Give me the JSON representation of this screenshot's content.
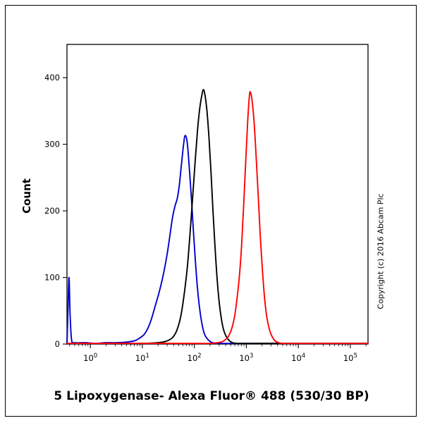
{
  "figure": {
    "caption": "5 Lipoxygenase- Alexa Fluor® 488 (530/30 BP)",
    "copyright": "Copyright (c) 2016 Abcam Plc"
  },
  "chart_data": {
    "type": "line",
    "subtype": "flow-cytometry-overlay-histogram",
    "title": "5 Lipoxygenase- Alexa Fluor® 488 (530/30 BP)",
    "xlabel": "",
    "ylabel": "Count",
    "x_scale": "log10",
    "x_tick_exponents": [
      0,
      1,
      2,
      3,
      4,
      5
    ],
    "x_range_log10": [
      -0.45,
      5.34
    ],
    "y_ticks": [
      0,
      100,
      200,
      300,
      400
    ],
    "y_range": [
      0,
      450
    ],
    "grid": false,
    "legend": "none",
    "series": [
      {
        "name": "blue-curve",
        "color": "#0000cc",
        "peak_x_log10": 1.82,
        "peak_y": 313,
        "points": [
          [
            -0.45,
            0
          ],
          [
            -0.43,
            55
          ],
          [
            -0.41,
            100
          ],
          [
            -0.39,
            45
          ],
          [
            -0.36,
            6
          ],
          [
            -0.3,
            2
          ],
          [
            -0.1,
            2
          ],
          [
            0.1,
            1
          ],
          [
            0.3,
            2
          ],
          [
            0.5,
            2
          ],
          [
            0.7,
            3
          ],
          [
            0.85,
            5
          ],
          [
            0.95,
            9
          ],
          [
            1.05,
            16
          ],
          [
            1.15,
            32
          ],
          [
            1.25,
            58
          ],
          [
            1.33,
            80
          ],
          [
            1.4,
            103
          ],
          [
            1.47,
            132
          ],
          [
            1.53,
            163
          ],
          [
            1.58,
            190
          ],
          [
            1.63,
            208
          ],
          [
            1.67,
            218
          ],
          [
            1.71,
            238
          ],
          [
            1.75,
            268
          ],
          [
            1.79,
            298
          ],
          [
            1.82,
            313
          ],
          [
            1.86,
            304
          ],
          [
            1.9,
            268
          ],
          [
            1.94,
            222
          ],
          [
            1.98,
            172
          ],
          [
            2.02,
            124
          ],
          [
            2.06,
            84
          ],
          [
            2.1,
            54
          ],
          [
            2.15,
            29
          ],
          [
            2.2,
            14
          ],
          [
            2.27,
            6
          ],
          [
            2.35,
            2
          ],
          [
            2.5,
            1
          ],
          [
            3.0,
            1
          ],
          [
            4.0,
            1
          ],
          [
            5.34,
            1
          ]
        ]
      },
      {
        "name": "black-curve",
        "color": "#000000",
        "peak_x_log10": 2.17,
        "peak_y": 382,
        "points": [
          [
            -0.45,
            1
          ],
          [
            0.5,
            1
          ],
          [
            1.0,
            1
          ],
          [
            1.3,
            2
          ],
          [
            1.45,
            4
          ],
          [
            1.57,
            9
          ],
          [
            1.66,
            20
          ],
          [
            1.74,
            42
          ],
          [
            1.8,
            72
          ],
          [
            1.86,
            112
          ],
          [
            1.91,
            158
          ],
          [
            1.96,
            212
          ],
          [
            2.01,
            268
          ],
          [
            2.06,
            320
          ],
          [
            2.1,
            352
          ],
          [
            2.14,
            372
          ],
          [
            2.17,
            382
          ],
          [
            2.2,
            376
          ],
          [
            2.24,
            352
          ],
          [
            2.28,
            312
          ],
          [
            2.32,
            258
          ],
          [
            2.36,
            198
          ],
          [
            2.4,
            142
          ],
          [
            2.44,
            96
          ],
          [
            2.48,
            61
          ],
          [
            2.53,
            33
          ],
          [
            2.58,
            17
          ],
          [
            2.64,
            8
          ],
          [
            2.71,
            3
          ],
          [
            2.82,
            1
          ],
          [
            3.2,
            1
          ],
          [
            5.34,
            1
          ]
        ]
      },
      {
        "name": "red-curve",
        "color": "#ff0000",
        "peak_x_log10": 3.08,
        "peak_y": 378,
        "points": [
          [
            -0.45,
            1
          ],
          [
            1.0,
            1
          ],
          [
            2.0,
            1
          ],
          [
            2.3,
            1
          ],
          [
            2.45,
            2
          ],
          [
            2.55,
            4
          ],
          [
            2.64,
            10
          ],
          [
            2.71,
            21
          ],
          [
            2.77,
            40
          ],
          [
            2.82,
            68
          ],
          [
            2.87,
            105
          ],
          [
            2.91,
            150
          ],
          [
            2.95,
            210
          ],
          [
            2.99,
            278
          ],
          [
            3.03,
            340
          ],
          [
            3.06,
            374
          ],
          [
            3.08,
            378
          ],
          [
            3.11,
            366
          ],
          [
            3.15,
            332
          ],
          [
            3.19,
            280
          ],
          [
            3.23,
            220
          ],
          [
            3.27,
            160
          ],
          [
            3.31,
            110
          ],
          [
            3.35,
            70
          ],
          [
            3.39,
            42
          ],
          [
            3.44,
            23
          ],
          [
            3.49,
            12
          ],
          [
            3.55,
            5
          ],
          [
            3.62,
            2
          ],
          [
            3.72,
            1
          ],
          [
            4.0,
            1
          ],
          [
            5.34,
            1
          ]
        ]
      }
    ]
  }
}
